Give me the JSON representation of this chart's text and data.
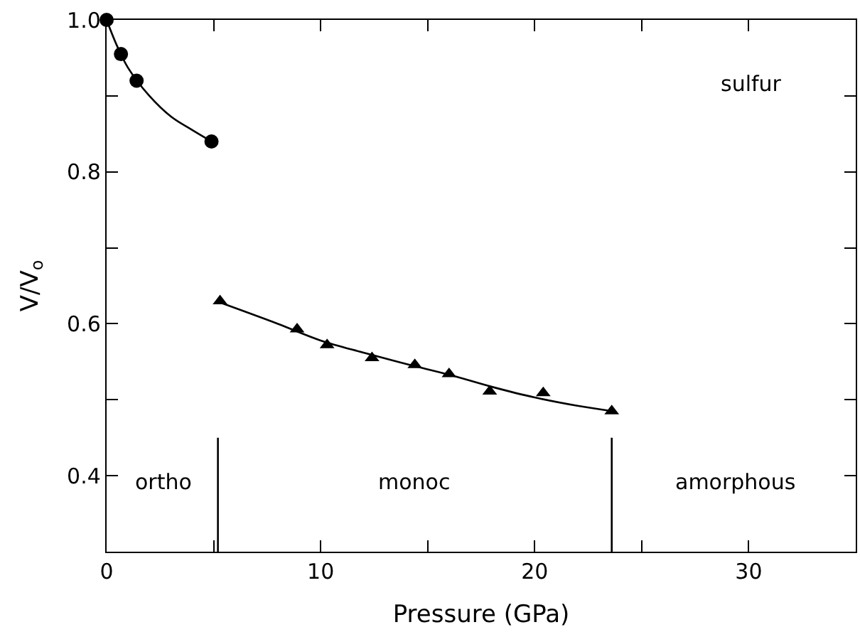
{
  "chart_data": {
    "type": "scatter",
    "xlabel": "Pressure (GPa)",
    "ylabel": "V/V$_{o}$",
    "xlim": [
      0,
      35
    ],
    "ylim": [
      0.3,
      1.0
    ],
    "xticks": [
      0,
      {
        "value": 5,
        "label": null
      },
      10,
      {
        "value": 15,
        "label": null
      },
      20,
      {
        "value": 25,
        "label": null
      },
      30
    ],
    "yticks": [
      {
        "value": 0.3,
        "label": null
      },
      0.4,
      {
        "value": 0.5,
        "label": null
      },
      0.6,
      {
        "value": 0.7,
        "label": null
      },
      0.8,
      {
        "value": 0.9,
        "label": null
      },
      {
        "value": 1.0,
        "label": "1.0"
      }
    ],
    "series": [
      {
        "marker": "circle",
        "color": "#000000",
        "x": [
          0,
          0.67,
          1.4,
          4.9
        ],
        "values": [
          1.0,
          0.955,
          0.92,
          0.84
        ]
      },
      {
        "marker": "triangle",
        "color": "#000000",
        "x": [
          5.3,
          8.9,
          10.3,
          12.4,
          14.4,
          16.0,
          17.9,
          20.4,
          23.6
        ],
        "values": [
          0.63,
          0.593,
          0.572,
          0.555,
          0.546,
          0.534,
          0.511,
          0.509,
          0.485
        ]
      },
      {
        "type": "line",
        "marker": "none",
        "color": "#000000",
        "x": [
          0,
          0.5,
          1,
          2,
          3,
          4,
          4.9
        ],
        "values": [
          1.0,
          0.965,
          0.937,
          0.9,
          0.873,
          0.855,
          0.84
        ]
      },
      {
        "type": "line",
        "marker": "none",
        "color": "#000000",
        "x": [
          5.3,
          8,
          10,
          12,
          14,
          16,
          18,
          20,
          22,
          23.6
        ],
        "values": [
          0.628,
          0.6,
          0.578,
          0.562,
          0.547,
          0.533,
          0.517,
          0.503,
          0.492,
          0.485
        ]
      },
      {
        "type": "line",
        "marker": "none",
        "color": "#000000",
        "x": [
          5.2,
          5.2
        ],
        "values": [
          0.3,
          0.45
        ]
      },
      {
        "type": "line",
        "marker": "none",
        "color": "#000000",
        "x": [
          23.6,
          23.6
        ],
        "values": [
          0.3,
          0.45
        ]
      }
    ],
    "annotations": [
      "sulfur",
      "ortho",
      "monoc",
      "amorphous"
    ]
  }
}
